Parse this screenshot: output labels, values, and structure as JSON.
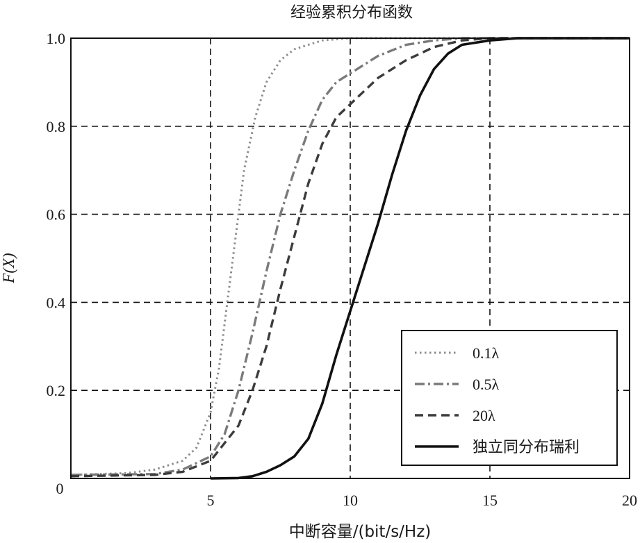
{
  "chart_data": {
    "type": "line",
    "title": "经验累积分布函数",
    "xlabel": "中断容量/(bit/s/Hz)",
    "ylabel": "F(X)",
    "xlim": [
      0,
      20
    ],
    "ylim": [
      0,
      1.0
    ],
    "x_ticks": [
      "5",
      "10",
      "15",
      "20"
    ],
    "x_origin_label": "0",
    "y_ticks": [
      "0.2",
      "0.4",
      "0.6",
      "0.8",
      "1.0"
    ],
    "grid": true,
    "legend_position": "bottom-right",
    "series": [
      {
        "name": "0.1λ",
        "style": "dotted",
        "color": "#8c8c8c",
        "points": [
          [
            0,
            0.008
          ],
          [
            2,
            0.012
          ],
          [
            3,
            0.02
          ],
          [
            4,
            0.04
          ],
          [
            4.5,
            0.07
          ],
          [
            5,
            0.15
          ],
          [
            5.3,
            0.25
          ],
          [
            5.6,
            0.4
          ],
          [
            5.9,
            0.55
          ],
          [
            6.2,
            0.7
          ],
          [
            6.6,
            0.82
          ],
          [
            7,
            0.9
          ],
          [
            7.5,
            0.95
          ],
          [
            8,
            0.975
          ],
          [
            9,
            0.995
          ],
          [
            10,
            1.0
          ],
          [
            20,
            1.0
          ]
        ]
      },
      {
        "name": "0.5λ",
        "style": "dashdot",
        "color": "#7a7a7a",
        "points": [
          [
            0,
            0.008
          ],
          [
            3,
            0.01
          ],
          [
            4,
            0.02
          ],
          [
            5,
            0.05
          ],
          [
            5.5,
            0.1
          ],
          [
            6,
            0.2
          ],
          [
            6.5,
            0.33
          ],
          [
            7,
            0.47
          ],
          [
            7.5,
            0.6
          ],
          [
            8,
            0.7
          ],
          [
            8.5,
            0.79
          ],
          [
            9,
            0.86
          ],
          [
            9.5,
            0.9
          ],
          [
            10,
            0.92
          ],
          [
            11,
            0.96
          ],
          [
            12,
            0.985
          ],
          [
            13,
            0.995
          ],
          [
            14,
            1.0
          ],
          [
            20,
            1.0
          ]
        ]
      },
      {
        "name": "20λ",
        "style": "dashed",
        "color": "#3c3c3c",
        "points": [
          [
            0,
            0.005
          ],
          [
            3,
            0.008
          ],
          [
            4,
            0.015
          ],
          [
            5,
            0.04
          ],
          [
            6,
            0.12
          ],
          [
            6.5,
            0.2
          ],
          [
            7,
            0.3
          ],
          [
            7.5,
            0.43
          ],
          [
            8,
            0.55
          ],
          [
            8.5,
            0.67
          ],
          [
            9,
            0.76
          ],
          [
            9.5,
            0.82
          ],
          [
            10,
            0.85
          ],
          [
            10.5,
            0.88
          ],
          [
            11,
            0.91
          ],
          [
            12,
            0.95
          ],
          [
            13,
            0.98
          ],
          [
            14,
            0.995
          ],
          [
            15,
            1.0
          ],
          [
            20,
            1.0
          ]
        ]
      },
      {
        "name": "独立同分布瑞利",
        "style": "solid",
        "color": "#111111",
        "points": [
          [
            5,
            0.0
          ],
          [
            6,
            0.001
          ],
          [
            6.5,
            0.005
          ],
          [
            7,
            0.015
          ],
          [
            7.5,
            0.03
          ],
          [
            8,
            0.05
          ],
          [
            8.5,
            0.09
          ],
          [
            9,
            0.17
          ],
          [
            9.5,
            0.28
          ],
          [
            10,
            0.38
          ],
          [
            10.5,
            0.48
          ],
          [
            11,
            0.58
          ],
          [
            11.5,
            0.69
          ],
          [
            12,
            0.79
          ],
          [
            12.5,
            0.87
          ],
          [
            13,
            0.93
          ],
          [
            13.5,
            0.965
          ],
          [
            14,
            0.985
          ],
          [
            15,
            0.995
          ],
          [
            16,
            1.0
          ],
          [
            20,
            1.0
          ]
        ]
      }
    ]
  }
}
